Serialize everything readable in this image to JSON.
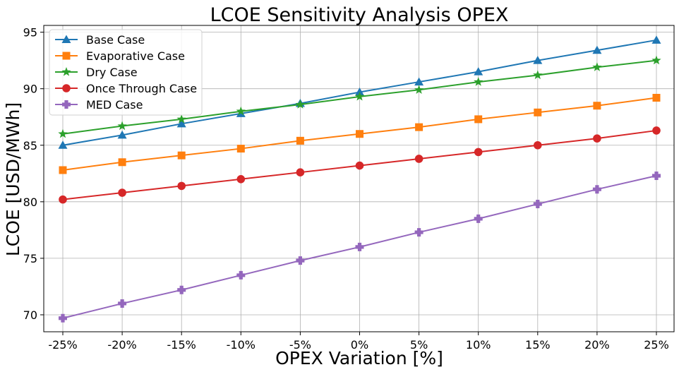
{
  "chart_data": {
    "type": "line",
    "title": "LCOE Sensitivity Analysis OPEX",
    "xlabel": "OPEX Variation [%]",
    "ylabel": "LCOE [USD/MWh]",
    "categories": [
      "-25%",
      "-20%",
      "-15%",
      "-10%",
      "-5%",
      "0%",
      "5%",
      "10%",
      "15%",
      "20%",
      "25%"
    ],
    "ylim": [
      68.5,
      95.6
    ],
    "yticks": [
      70,
      75,
      80,
      85,
      90,
      95
    ],
    "grid": true,
    "legend_position": "upper-left",
    "series": [
      {
        "name": "Base Case",
        "color": "#1f77b4",
        "marker": "triangle",
        "values": [
          85.0,
          85.9,
          86.9,
          87.8,
          88.7,
          89.7,
          90.6,
          91.5,
          92.5,
          93.4,
          94.3
        ]
      },
      {
        "name": "Evaporative Case",
        "color": "#ff7f0e",
        "marker": "square",
        "values": [
          82.8,
          83.5,
          84.1,
          84.7,
          85.4,
          86.0,
          86.6,
          87.3,
          87.9,
          88.5,
          89.2
        ]
      },
      {
        "name": "Dry Case",
        "color": "#2ca02c",
        "marker": "star",
        "values": [
          86.0,
          86.7,
          87.3,
          88.0,
          88.6,
          89.3,
          89.9,
          90.6,
          91.2,
          91.9,
          92.5
        ]
      },
      {
        "name": "Once Through Case",
        "color": "#d62728",
        "marker": "circle",
        "values": [
          80.2,
          80.8,
          81.4,
          82.0,
          82.6,
          83.2,
          83.8,
          84.4,
          85.0,
          85.6,
          86.3
        ]
      },
      {
        "name": "MED Case",
        "color": "#9467bd",
        "marker": "plus",
        "values": [
          69.7,
          71.0,
          72.2,
          73.5,
          74.8,
          76.0,
          77.3,
          78.5,
          79.8,
          81.1,
          82.3
        ]
      }
    ]
  }
}
